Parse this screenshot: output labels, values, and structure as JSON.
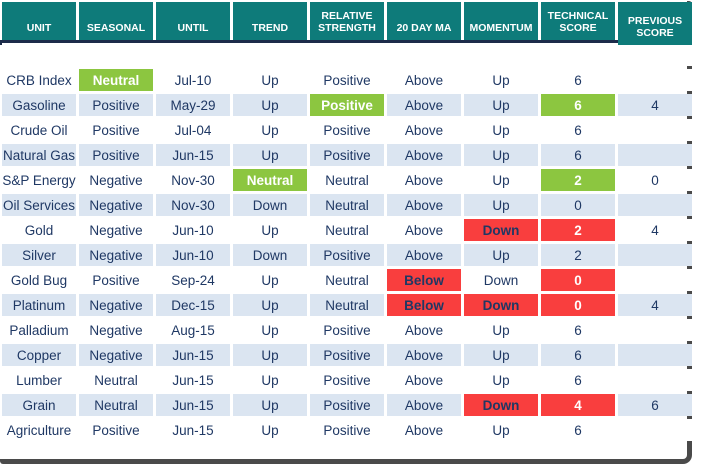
{
  "title": "Commodity technical score table",
  "colors": {
    "header_bg": "#0e7b7a",
    "header_text": "#ffffff",
    "body_text_navy": "#1f3864",
    "stripe_blue": "#dbe5f1",
    "highlight_green": "#8cc640",
    "highlight_red": "#f93e3e",
    "header_underline_navy": "#1c2b4a",
    "frame_border": "#4a4a4a"
  },
  "table": {
    "columns": [
      {
        "key": "unit",
        "label": "UNIT"
      },
      {
        "key": "seasonal",
        "label": "SEASONAL"
      },
      {
        "key": "until",
        "label": "UNTIL"
      },
      {
        "key": "trend",
        "label": "TREND"
      },
      {
        "key": "relative_strength",
        "label": "RELATIVE STRENGTH"
      },
      {
        "key": "ma20",
        "label": "20 DAY MA"
      },
      {
        "key": "momentum",
        "label": "MOMENTUM"
      },
      {
        "key": "technical_score",
        "label": "TECHNICAL SCORE"
      },
      {
        "key": "previous_score",
        "label": "PREVIOUS SCORE"
      }
    ],
    "rows": [
      {
        "cells": [
          "CRB Index",
          "Neutral",
          "Jul-10",
          "Up",
          "Positive",
          "Above",
          "Up",
          "6",
          ""
        ]
      },
      {
        "cells": [
          "Gasoline",
          "Positive",
          "May-29",
          "Up",
          "Positive",
          "Above",
          "Up",
          "6",
          "4"
        ]
      },
      {
        "cells": [
          "Crude Oil",
          "Positive",
          "Jul-04",
          "Up",
          "Positive",
          "Above",
          "Up",
          "6",
          ""
        ]
      },
      {
        "cells": [
          "Natural Gas",
          "Positive",
          "Jun-15",
          "Up",
          "Positive",
          "Above",
          "Up",
          "6",
          ""
        ]
      },
      {
        "cells": [
          "S&P Energy",
          "Negative",
          "Nov-30",
          "Neutral",
          "Neutral",
          "Above",
          "Up",
          "2",
          "0"
        ]
      },
      {
        "cells": [
          "Oil Services",
          "Negative",
          "Nov-30",
          "Down",
          "Neutral",
          "Above",
          "Up",
          "0",
          ""
        ]
      },
      {
        "cells": [
          "Gold",
          "Negative",
          "Jun-10",
          "Up",
          "Neutral",
          "Above",
          "Down",
          "2",
          "4"
        ]
      },
      {
        "cells": [
          "Silver",
          "Negative",
          "Jun-10",
          "Down",
          "Positive",
          "Above",
          "Up",
          "2",
          ""
        ]
      },
      {
        "cells": [
          "Gold Bug",
          "Positive",
          "Sep-24",
          "Up",
          "Neutral",
          "Below",
          "Down",
          "0",
          ""
        ]
      },
      {
        "cells": [
          "Platinum",
          "Negative",
          "Dec-15",
          "Up",
          "Neutral",
          "Below",
          "Down",
          "0",
          "4"
        ]
      },
      {
        "cells": [
          "Palladium",
          "Negative",
          "Aug-15",
          "Up",
          "Positive",
          "Above",
          "Up",
          "6",
          ""
        ]
      },
      {
        "cells": [
          "Copper",
          "Negative",
          "Jun-15",
          "Up",
          "Positive",
          "Above",
          "Up",
          "6",
          ""
        ]
      },
      {
        "cells": [
          "Lumber",
          "Neutral",
          "Jun-15",
          "Up",
          "Positive",
          "Above",
          "Up",
          "6",
          ""
        ]
      },
      {
        "cells": [
          "Grain",
          "Neutral",
          "Jun-15",
          "Up",
          "Positive",
          "Above",
          "Down",
          "4",
          "6"
        ]
      },
      {
        "cells": [
          "Agriculture",
          "Positive",
          "Jun-15",
          "Up",
          "Positive",
          "Above",
          "Up",
          "6",
          ""
        ]
      }
    ],
    "highlights": [
      {
        "row": 0,
        "col": 1,
        "color": "green"
      },
      {
        "row": 1,
        "col": 4,
        "color": "green"
      },
      {
        "row": 1,
        "col": 7,
        "color": "green"
      },
      {
        "row": 4,
        "col": 3,
        "color": "green"
      },
      {
        "row": 4,
        "col": 7,
        "color": "green"
      },
      {
        "row": 6,
        "col": 6,
        "color": "red"
      },
      {
        "row": 6,
        "col": 7,
        "color": "red"
      },
      {
        "row": 8,
        "col": 5,
        "color": "red"
      },
      {
        "row": 8,
        "col": 7,
        "color": "red"
      },
      {
        "row": 9,
        "col": 5,
        "color": "red"
      },
      {
        "row": 9,
        "col": 6,
        "color": "red"
      },
      {
        "row": 9,
        "col": 7,
        "color": "red"
      },
      {
        "row": 13,
        "col": 6,
        "color": "red"
      },
      {
        "row": 13,
        "col": 7,
        "color": "red"
      }
    ]
  }
}
